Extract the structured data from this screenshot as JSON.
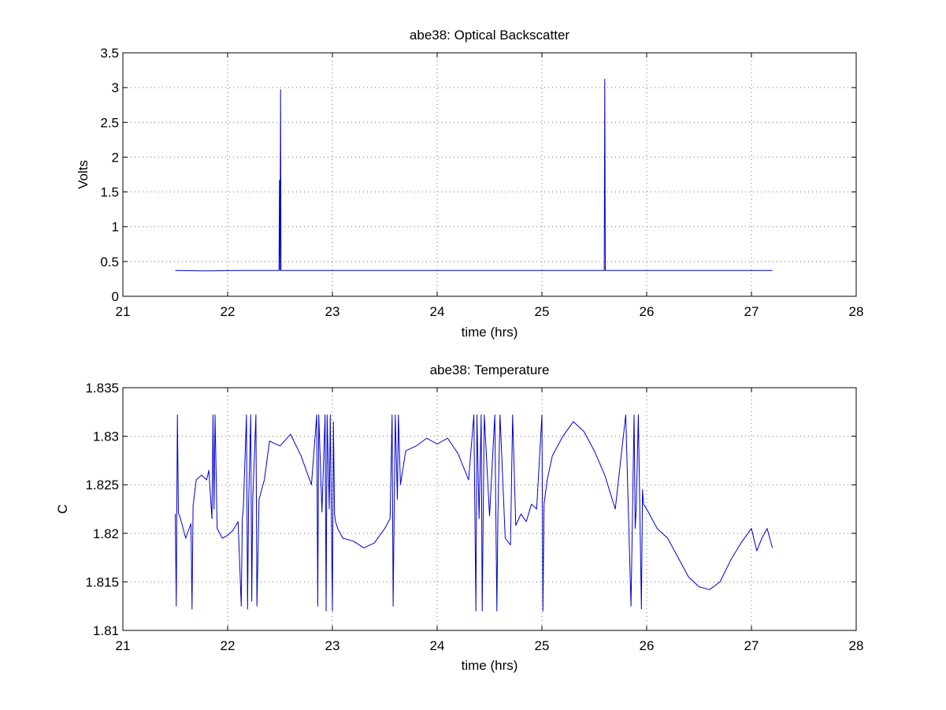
{
  "chart_data": [
    {
      "type": "line",
      "title": "abe38: Optical Backscatter",
      "xlabel": "time (hrs)",
      "ylabel": "Volts",
      "xlim": [
        21,
        28
      ],
      "ylim": [
        0,
        3.5
      ],
      "xticks": [
        "21",
        "22",
        "23",
        "24",
        "25",
        "26",
        "27",
        "28"
      ],
      "yticks": [
        "0",
        "0.5",
        "1",
        "1.5",
        "2",
        "2.5",
        "3",
        "3.5"
      ],
      "grid": true,
      "color": "#0000cc",
      "series": [
        {
          "x": [
            21.5,
            21.8,
            22.1,
            22.49,
            22.495,
            22.5,
            22.505,
            22.51,
            22.52,
            23.0,
            23.5,
            24.0,
            24.5,
            25.0,
            25.5,
            25.595,
            25.6,
            25.605,
            26.0,
            26.5,
            27.0,
            27.2
          ],
          "y": [
            0.37,
            0.365,
            0.37,
            0.37,
            1.67,
            0.37,
            2.97,
            0.37,
            0.37,
            0.37,
            0.37,
            0.37,
            0.37,
            0.37,
            0.37,
            0.37,
            3.12,
            0.37,
            0.37,
            0.37,
            0.37,
            0.37
          ]
        }
      ]
    },
    {
      "type": "line",
      "title": "abe38: Temperature",
      "xlabel": "time (hrs)",
      "ylabel": "C",
      "xlim": [
        21,
        28
      ],
      "ylim": [
        1.81,
        1.835
      ],
      "xticks": [
        "21",
        "22",
        "23",
        "24",
        "25",
        "26",
        "27",
        "28"
      ],
      "yticks": [
        "1.81",
        "1.815",
        "1.82",
        "1.825",
        "1.83",
        "1.835"
      ],
      "grid": true,
      "color": "#0000cc",
      "series": [
        {
          "x": [
            21.5,
            21.51,
            21.52,
            21.53,
            21.55,
            21.6,
            21.65,
            21.66,
            21.67,
            21.7,
            21.75,
            21.8,
            21.82,
            21.85,
            21.86,
            21.87,
            21.88,
            21.9,
            21.95,
            22.0,
            22.05,
            22.1,
            22.13,
            22.14,
            22.15,
            22.18,
            22.19,
            22.2,
            22.22,
            22.23,
            22.24,
            22.27,
            22.28,
            22.3,
            22.35,
            22.4,
            22.5,
            22.6,
            22.7,
            22.8,
            22.85,
            22.86,
            22.87,
            22.9,
            22.93,
            22.94,
            22.95,
            22.97,
            22.98,
            23.0,
            23.01,
            23.02,
            23.03,
            23.05,
            23.1,
            23.2,
            23.3,
            23.4,
            23.5,
            23.55,
            23.57,
            23.58,
            23.6,
            23.62,
            23.63,
            23.65,
            23.7,
            23.8,
            23.9,
            24.0,
            24.1,
            24.2,
            24.3,
            24.35,
            24.37,
            24.38,
            24.4,
            24.42,
            24.43,
            24.45,
            24.5,
            24.55,
            24.57,
            24.58,
            24.6,
            24.65,
            24.7,
            24.72,
            24.75,
            24.8,
            24.85,
            24.9,
            24.95,
            25.0,
            25.01,
            25.02,
            25.05,
            25.1,
            25.2,
            25.3,
            25.4,
            25.5,
            25.6,
            25.7,
            25.8,
            25.85,
            25.88,
            25.89,
            25.9,
            25.92,
            25.95,
            25.96,
            25.97,
            26.0,
            26.1,
            26.2,
            26.3,
            26.4,
            26.5,
            26.6,
            26.7,
            26.8,
            26.9,
            27.0,
            27.05,
            27.1,
            27.15,
            27.2
          ],
          "y": [
            1.822,
            1.8125,
            1.8322,
            1.8221,
            1.8215,
            1.8195,
            1.821,
            1.8122,
            1.8228,
            1.8255,
            1.826,
            1.8255,
            1.8265,
            1.8215,
            1.8322,
            1.8225,
            1.8322,
            1.8205,
            1.8195,
            1.8198,
            1.8203,
            1.8212,
            1.8125,
            1.8215,
            1.8225,
            1.8322,
            1.8122,
            1.823,
            1.8322,
            1.813,
            1.8235,
            1.8322,
            1.8125,
            1.8235,
            1.8255,
            1.8295,
            1.829,
            1.8302,
            1.828,
            1.825,
            1.8322,
            1.8125,
            1.8322,
            1.8222,
            1.8322,
            1.812,
            1.8322,
            1.8225,
            1.8322,
            1.812,
            1.8315,
            1.822,
            1.8212,
            1.8205,
            1.8195,
            1.8192,
            1.8185,
            1.819,
            1.8205,
            1.8215,
            1.8322,
            1.8125,
            1.8322,
            1.8235,
            1.8322,
            1.825,
            1.8285,
            1.829,
            1.8298,
            1.8292,
            1.8298,
            1.8282,
            1.8255,
            1.8322,
            1.812,
            1.8322,
            1.8215,
            1.8322,
            1.812,
            1.8322,
            1.8218,
            1.8322,
            1.812,
            1.8218,
            1.8322,
            1.8195,
            1.8188,
            1.8322,
            1.8208,
            1.822,
            1.8212,
            1.823,
            1.8225,
            1.8322,
            1.812,
            1.823,
            1.8255,
            1.828,
            1.83,
            1.8315,
            1.8305,
            1.8285,
            1.826,
            1.8225,
            1.8322,
            1.8125,
            1.8322,
            1.8205,
            1.8225,
            1.8322,
            1.8122,
            1.8245,
            1.823,
            1.8225,
            1.8205,
            1.8195,
            1.8175,
            1.8155,
            1.8145,
            1.8142,
            1.815,
            1.8172,
            1.819,
            1.8205,
            1.8182,
            1.8195,
            1.8205,
            1.8185
          ]
        }
      ]
    }
  ]
}
